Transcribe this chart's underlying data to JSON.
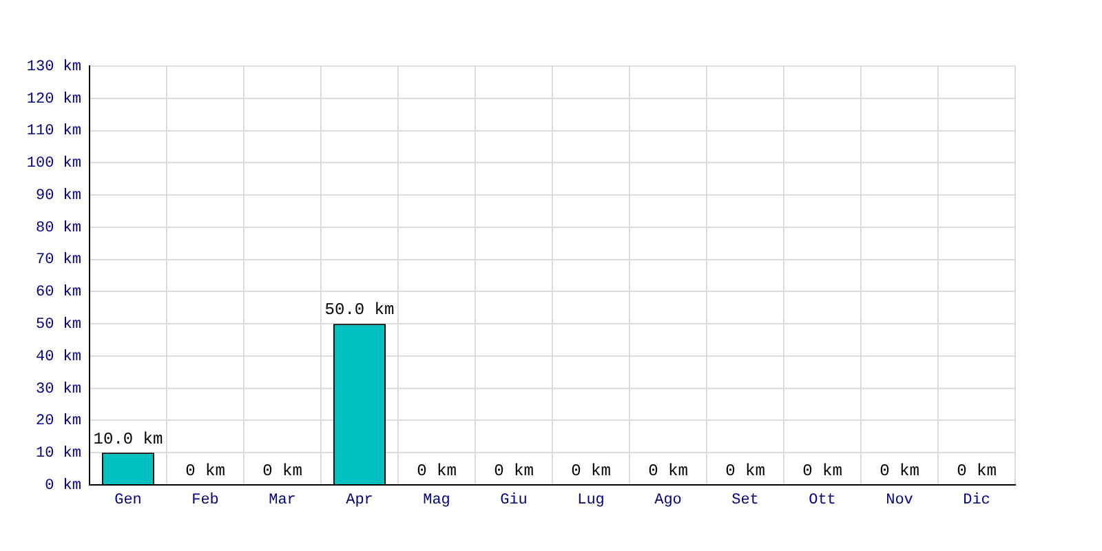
{
  "chart_data": {
    "type": "bar",
    "categories": [
      "Gen",
      "Feb",
      "Mar",
      "Apr",
      "Mag",
      "Giu",
      "Lug",
      "Ago",
      "Set",
      "Ott",
      "Nov",
      "Dic"
    ],
    "values": [
      10,
      0,
      0,
      50,
      0,
      0,
      0,
      0,
      0,
      0,
      0,
      0
    ],
    "value_labels": [
      "10.0 km",
      "0 km",
      "0 km",
      "50.0 km",
      "0 km",
      "0 km",
      "0 km",
      "0 km",
      "0 km",
      "0 km",
      "0 km",
      "0 km"
    ],
    "color": "#00c0c0",
    "ylim": [
      0,
      130
    ],
    "yticks": [
      {
        "value": 0,
        "label": "0 km"
      },
      {
        "value": 10,
        "label": "10 km"
      },
      {
        "value": 20,
        "label": "20 km"
      },
      {
        "value": 30,
        "label": "30 km"
      },
      {
        "value": 40,
        "label": "40 km"
      },
      {
        "value": 50,
        "label": "50 km"
      },
      {
        "value": 60,
        "label": "60 km"
      },
      {
        "value": 70,
        "label": "70 km"
      },
      {
        "value": 80,
        "label": "80 km"
      },
      {
        "value": 90,
        "label": "90 km"
      },
      {
        "value": 100,
        "label": "100 km"
      },
      {
        "value": 110,
        "label": "110 km"
      },
      {
        "value": 120,
        "label": "120 km"
      },
      {
        "value": 130,
        "label": "130 km"
      }
    ],
    "grid": true
  }
}
